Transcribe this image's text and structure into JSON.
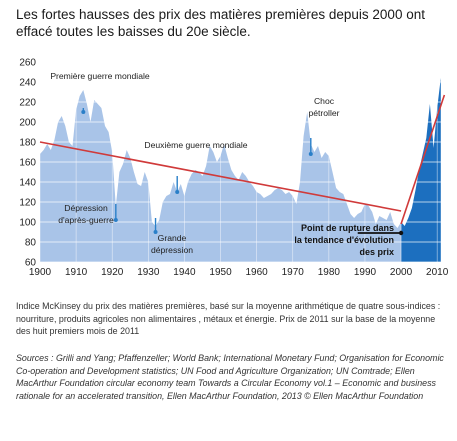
{
  "title": "Les fortes hausses des prix des matières premières depuis 2000 ont effacé toutes les baisses du 20e siècle.",
  "caption": "Indice McKinsey du prix des matières premières, basé sur la moyenne arithmétique de quatre sous-indices : nourriture, produits agricoles non alimentaires , métaux et énergie. Prix de 2011 sur la base de la moyenne des huit premiers mois de 2011",
  "sources": "Sources : Grilli and Yang; Pfaffenzeller; World Bank; International Monetary Fund; Organisation for Economic Co-operation and Development statistics; UN Food and Agriculture Organization; UN Comtrade; Ellen MacArthur Foundation circular economy team Towards a Circular Economy vol.1 – Economic and business rationale for an accelerated transition, Ellen MacArthur Foundation, 2013 © Ellen MacArthur Foundation",
  "colors": {
    "area": "#a9c4e8",
    "area_recent": "#1c6fbf",
    "trend": "#d03a3a",
    "grid": "#ffffff",
    "marker": "#2a7fc8"
  },
  "chart_data": {
    "type": "area",
    "xlim": [
      1900,
      2013
    ],
    "ylim": [
      60,
      260
    ],
    "xticks": [
      1900,
      1910,
      1920,
      1930,
      1940,
      1950,
      1960,
      1970,
      1980,
      1990,
      2000,
      2010
    ],
    "yticks": [
      60,
      80,
      100,
      120,
      140,
      160,
      180,
      200,
      220,
      240,
      260
    ],
    "grid": true,
    "series": [
      {
        "x": [
          1900,
          1901,
          1902,
          1903,
          1904,
          1905,
          1906,
          1907,
          1908,
          1909,
          1910,
          1911,
          1912,
          1913,
          1914,
          1915,
          1916,
          1917,
          1918,
          1919,
          1920,
          1921,
          1922,
          1923,
          1924,
          1925,
          1926,
          1927,
          1928,
          1929,
          1930,
          1931,
          1932,
          1933,
          1934,
          1935,
          1936,
          1937,
          1938,
          1939,
          1940,
          1941,
          1942,
          1943,
          1944,
          1945,
          1946,
          1947,
          1948,
          1949,
          1950,
          1951,
          1952,
          1953,
          1954,
          1955,
          1956,
          1957,
          1958,
          1959,
          1960,
          1961,
          1962,
          1963,
          1964,
          1965,
          1966,
          1967,
          1968,
          1969,
          1970,
          1971,
          1972,
          1973,
          1974,
          1975,
          1976,
          1977,
          1978,
          1979,
          1980,
          1981,
          1982,
          1983,
          1984,
          1985,
          1986,
          1987,
          1988,
          1989,
          1990,
          1991,
          1992,
          1993,
          1994,
          1995,
          1996,
          1997,
          1998,
          1999,
          2000
        ],
        "values": [
          168,
          172,
          178,
          172,
          182,
          200,
          206,
          196,
          180,
          176,
          212,
          226,
          232,
          218,
          200,
          222,
          218,
          214,
          196,
          190,
          170,
          116,
          150,
          158,
          172,
          164,
          150,
          138,
          136,
          150,
          140,
          100,
          96,
          102,
          120,
          126,
          128,
          140,
          130,
          138,
          126,
          140,
          148,
          152,
          150,
          146,
          156,
          176,
          170,
          160,
          166,
          178,
          164,
          152,
          146,
          142,
          150,
          146,
          140,
          136,
          130,
          128,
          124,
          126,
          128,
          132,
          134,
          132,
          128,
          130,
          126,
          118,
          140,
          186,
          210,
          178,
          170,
          176,
          164,
          170,
          166,
          150,
          134,
          130,
          128,
          118,
          108,
          104,
          108,
          110,
          118,
          116,
          110,
          98,
          106,
          104,
          102,
          110,
          98,
          94,
          100
        ]
      },
      {
        "x": [
          2000,
          2001,
          2002,
          2003,
          2004,
          2005,
          2006,
          2007,
          2008,
          2009,
          2010,
          2011
        ],
        "values": [
          100,
          96,
          104,
          114,
          132,
          152,
          168,
          184,
          218,
          174,
          214,
          244
        ]
      }
    ],
    "trend_lines": [
      {
        "x": [
          1900,
          2000
        ],
        "y": [
          180,
          111
        ]
      },
      {
        "x": [
          2000,
          2012
        ],
        "y": [
          98,
          227
        ]
      }
    ],
    "annotations": [
      {
        "text": "Première guerre mondiale",
        "x": 1912,
        "y": 210
      },
      {
        "text": "Dépression",
        "line2": "d'après-guerre",
        "x": 1921,
        "y": 106
      },
      {
        "text": "Deuxième guerre mondiale",
        "x": 1938,
        "y": 134
      },
      {
        "text": "Grande",
        "line2": "dépression",
        "x": 1932,
        "y": 102
      },
      {
        "text": "Choc",
        "line2": "pétroller",
        "x": 1975,
        "y": 174
      },
      {
        "text": "Point de rupture dans",
        "line2": "la tendance d'évolution",
        "line3": "des prix",
        "x": 2000,
        "y": 89
      }
    ]
  }
}
